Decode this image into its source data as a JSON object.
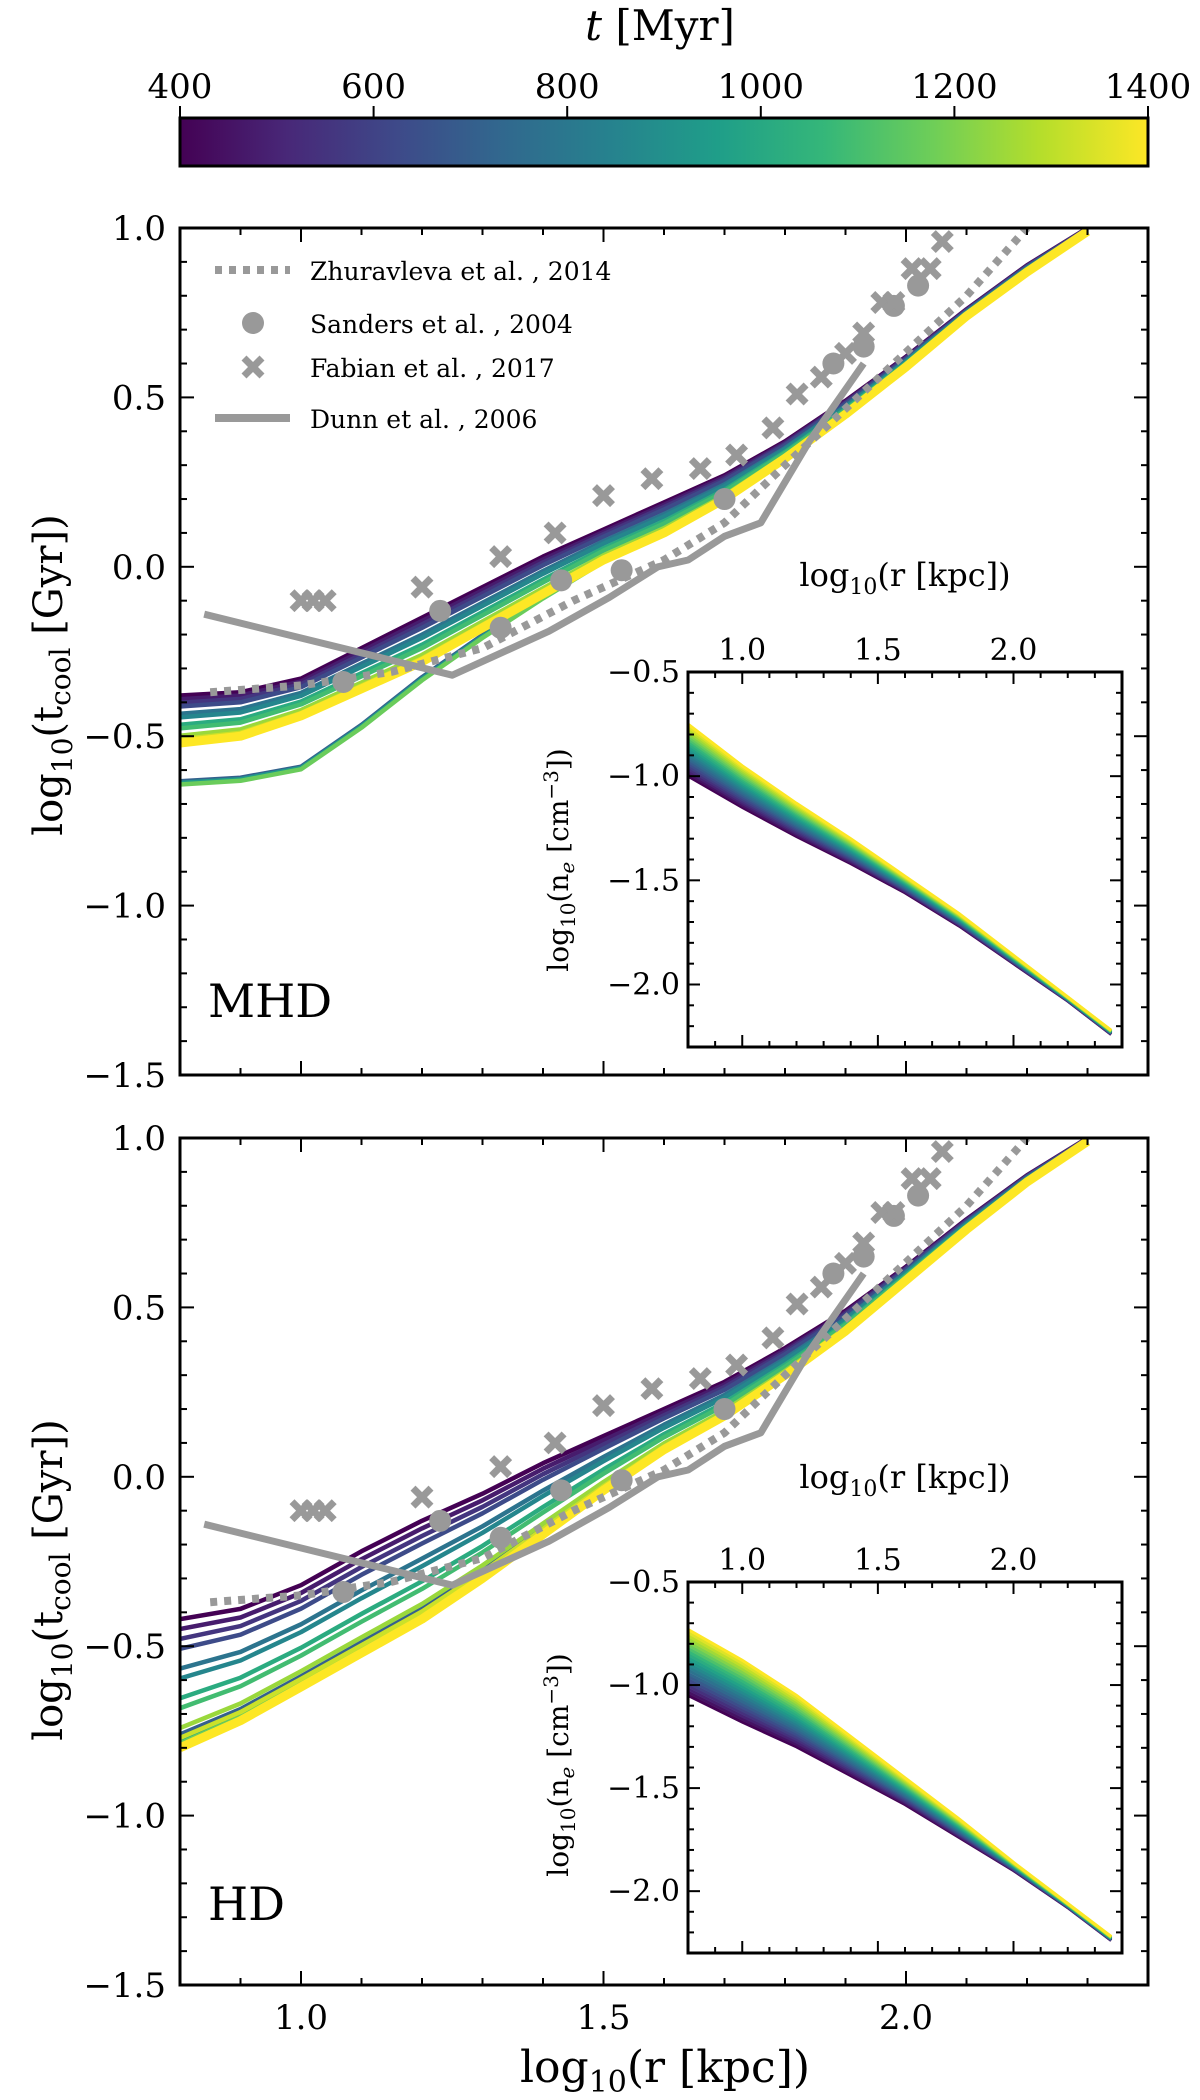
{
  "colorbar": {
    "label_var": "t",
    "label_unit": " [Myr]",
    "ticks": [
      400,
      600,
      800,
      1000,
      1200,
      1400
    ],
    "tick_labels": [
      "400",
      "600",
      "800",
      "1000",
      "1200",
      "1400"
    ],
    "range": [
      400,
      1400
    ],
    "colormap": "viridis",
    "colormap_stops": [
      "#440154",
      "#482878",
      "#3e4989",
      "#31688e",
      "#26828e",
      "#1f9e89",
      "#35b779",
      "#6ece58",
      "#b5de2b",
      "#fde725"
    ]
  },
  "main_axis": {
    "xlabel_pre": "log",
    "xlabel_sub": "10",
    "xlabel_post": "(r [kpc])",
    "ylabel_pre": "log",
    "ylabel_sub": "10",
    "ylabel_mid": "(t",
    "ylabel_sub2": "cool",
    "ylabel_post": " [Gyr])",
    "xlim": [
      0.8,
      2.4
    ],
    "ylim": [
      -1.5,
      1.0
    ],
    "xticks": [
      1.0,
      1.5,
      2.0
    ],
    "xtick_labels": [
      "1.0",
      "1.5",
      "2.0"
    ],
    "yticks": [
      -1.5,
      -1.0,
      -0.5,
      0.0,
      0.5,
      1.0
    ],
    "ytick_labels": [
      "−1.5",
      "−1.0",
      "−0.5",
      "0.0",
      "0.5",
      "1.0"
    ]
  },
  "inset_axis": {
    "xlabel_pre": "log",
    "xlabel_sub": "10",
    "xlabel_post": "(r [kpc])",
    "ylabel_pre": "log",
    "ylabel_sub": "10",
    "ylabel_mid": "(n",
    "ylabel_sub2": "e",
    "ylabel_post": " [cm",
    "ylabel_sup": "−3",
    "ylabel_end": "])",
    "xlim": [
      0.8,
      2.4
    ],
    "ylim": [
      -2.3,
      -0.5
    ],
    "xticks": [
      1.0,
      1.5,
      2.0
    ],
    "xtick_labels": [
      "1.0",
      "1.5",
      "2.0"
    ],
    "yticks": [
      -2.0,
      -1.5,
      -1.0,
      -0.5
    ],
    "ytick_labels": [
      "−2.0",
      "−1.5",
      "−1.0",
      "−0.5"
    ]
  },
  "legend": {
    "placement": "upper-left",
    "entries": [
      {
        "label": "Zhuravleva et al. , 2014",
        "marker": "dotted-line"
      },
      {
        "label": "Sanders et al. , 2004",
        "marker": "circle"
      },
      {
        "label": "Fabian et al. , 2017",
        "marker": "cross"
      },
      {
        "label": "Dunn et al. , 2006",
        "marker": "solid-line"
      }
    ]
  },
  "chart_data": [
    {
      "type": "line",
      "panel_label": "MHD",
      "series_by_time": {
        "times_myr": [
          400,
          1400
        ],
        "x": [
          0.8,
          0.9,
          1.0,
          1.1,
          1.2,
          1.3,
          1.4,
          1.5,
          1.6,
          1.7,
          1.8,
          1.9,
          2.0,
          2.1,
          2.2,
          2.3
        ],
        "tcool_first": [
          -0.38,
          -0.37,
          -0.33,
          -0.24,
          -0.15,
          -0.06,
          0.03,
          0.11,
          0.19,
          0.27,
          0.37,
          0.49,
          0.62,
          0.76,
          0.89,
          1.0
        ],
        "tcool_last": [
          -0.52,
          -0.5,
          -0.44,
          -0.36,
          -0.28,
          -0.18,
          -0.08,
          0.02,
          0.1,
          0.2,
          0.32,
          0.45,
          0.59,
          0.74,
          0.87,
          0.99
        ],
        "low_branch": [
          -0.67,
          -0.66,
          -0.63,
          -0.5,
          -0.35,
          -0.22,
          -0.1,
          0.01,
          0.1,
          0.2,
          0.32,
          0.45,
          0.59,
          0.74,
          0.87,
          0.99
        ]
      },
      "inset_ne": {
        "x": [
          0.8,
          1.0,
          1.2,
          1.4,
          1.6,
          1.8,
          2.0,
          2.2,
          2.36
        ],
        "ne_first": [
          -1.0,
          -1.15,
          -1.29,
          -1.42,
          -1.56,
          -1.72,
          -1.9,
          -2.08,
          -2.24
        ],
        "ne_last": [
          -0.75,
          -0.95,
          -1.13,
          -1.3,
          -1.48,
          -1.66,
          -1.86,
          -2.06,
          -2.22
        ]
      },
      "observations": {
        "zhuravleva_2014": {
          "x": [
            0.85,
            1.0,
            1.15,
            1.3,
            1.45,
            1.6,
            1.7,
            1.8,
            1.95,
            2.1,
            2.2
          ],
          "y": [
            -0.37,
            -0.35,
            -0.31,
            -0.24,
            -0.1,
            0.02,
            0.13,
            0.3,
            0.55,
            0.8,
            1.0
          ]
        },
        "sanders_2004": {
          "x": [
            1.07,
            1.23,
            1.33,
            1.43,
            1.53,
            1.7,
            1.88,
            1.93,
            1.98,
            2.02
          ],
          "y": [
            -0.34,
            -0.13,
            -0.18,
            -0.04,
            -0.01,
            0.2,
            0.6,
            0.65,
            0.77,
            0.83
          ]
        },
        "fabian_2017": {
          "x": [
            1.0,
            1.02,
            1.04,
            1.2,
            1.33,
            1.42,
            1.5,
            1.58,
            1.66,
            1.72,
            1.78,
            1.82,
            1.86,
            1.9,
            1.93,
            1.96,
            1.98,
            2.01,
            2.04,
            2.06
          ],
          "y": [
            -0.1,
            -0.1,
            -0.1,
            -0.06,
            0.03,
            0.1,
            0.21,
            0.26,
            0.29,
            0.33,
            0.41,
            0.51,
            0.56,
            0.63,
            0.69,
            0.78,
            0.78,
            0.88,
            0.88,
            0.96
          ]
        },
        "dunn_2006": {
          "x": [
            0.84,
            1.25,
            1.41,
            1.51,
            1.59,
            1.64,
            1.7,
            1.76,
            1.84,
            1.93
          ],
          "y": [
            -0.14,
            -0.32,
            -0.19,
            -0.09,
            0.0,
            0.02,
            0.09,
            0.13,
            0.37,
            0.6
          ]
        }
      }
    },
    {
      "type": "line",
      "panel_label": "HD",
      "series_by_time": {
        "times_myr": [
          400,
          1400
        ],
        "x": [
          0.8,
          0.9,
          1.0,
          1.1,
          1.2,
          1.3,
          1.4,
          1.5,
          1.6,
          1.7,
          1.8,
          1.9,
          2.0,
          2.1,
          2.2,
          2.3
        ],
        "tcool_first": [
          -0.42,
          -0.39,
          -0.32,
          -0.22,
          -0.13,
          -0.05,
          0.04,
          0.12,
          0.2,
          0.28,
          0.38,
          0.49,
          0.62,
          0.76,
          0.89,
          1.0
        ],
        "tcool_last": [
          -0.8,
          -0.72,
          -0.62,
          -0.52,
          -0.42,
          -0.3,
          -0.17,
          -0.04,
          0.08,
          0.18,
          0.3,
          0.43,
          0.58,
          0.73,
          0.87,
          0.99
        ],
        "low_branch": [
          -0.8,
          -0.72,
          -0.62,
          -0.52,
          -0.42,
          -0.3,
          -0.17,
          -0.04,
          0.08,
          0.18,
          0.3,
          0.43,
          0.58,
          0.73,
          0.87,
          0.99
        ]
      },
      "inset_ne": {
        "x": [
          0.8,
          1.0,
          1.2,
          1.4,
          1.6,
          1.8,
          2.0,
          2.2,
          2.36
        ],
        "ne_first": [
          -1.05,
          -1.18,
          -1.3,
          -1.44,
          -1.58,
          -1.74,
          -1.9,
          -2.08,
          -2.24
        ],
        "ne_last": [
          -0.73,
          -0.88,
          -1.05,
          -1.25,
          -1.45,
          -1.65,
          -1.86,
          -2.06,
          -2.22
        ]
      },
      "observations": {
        "zhuravleva_2014": {
          "x": [
            0.85,
            1.0,
            1.15,
            1.3,
            1.45,
            1.6,
            1.7,
            1.8,
            1.95,
            2.1,
            2.2
          ],
          "y": [
            -0.37,
            -0.35,
            -0.31,
            -0.24,
            -0.1,
            0.02,
            0.13,
            0.3,
            0.55,
            0.8,
            1.0
          ]
        },
        "sanders_2004": {
          "x": [
            1.07,
            1.23,
            1.33,
            1.43,
            1.53,
            1.7,
            1.88,
            1.93,
            1.98,
            2.02
          ],
          "y": [
            -0.34,
            -0.13,
            -0.18,
            -0.04,
            -0.01,
            0.2,
            0.6,
            0.65,
            0.77,
            0.83
          ]
        },
        "fabian_2017": {
          "x": [
            1.0,
            1.02,
            1.04,
            1.2,
            1.33,
            1.42,
            1.5,
            1.58,
            1.66,
            1.72,
            1.78,
            1.82,
            1.86,
            1.9,
            1.93,
            1.96,
            1.98,
            2.01,
            2.04,
            2.06
          ],
          "y": [
            -0.1,
            -0.1,
            -0.1,
            -0.06,
            0.03,
            0.1,
            0.21,
            0.26,
            0.29,
            0.33,
            0.41,
            0.51,
            0.56,
            0.63,
            0.69,
            0.78,
            0.78,
            0.88,
            0.88,
            0.96
          ]
        },
        "dunn_2006": {
          "x": [
            0.84,
            1.25,
            1.41,
            1.51,
            1.59,
            1.64,
            1.7,
            1.76,
            1.84,
            1.93
          ],
          "y": [
            -0.14,
            -0.32,
            -0.19,
            -0.09,
            0.0,
            0.02,
            0.09,
            0.13,
            0.37,
            0.6
          ]
        }
      }
    }
  ]
}
